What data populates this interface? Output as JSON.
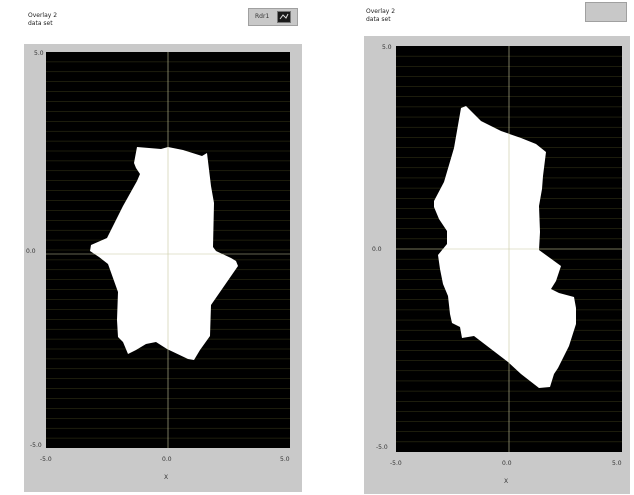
{
  "left_graph": {
    "title_line1": "Overlay 2",
    "title_line2": "data set",
    "button_label": "Rdr1",
    "y_tick_top": "5.0",
    "y_tick_mid": "0.0",
    "y_tick_bot": "-5.0",
    "x_tick_left": "-5.0",
    "x_tick_mid": "0.0",
    "x_tick_right": "5.0",
    "x_axis_label": "X"
  },
  "right_graph": {
    "title_line1": "Overlay 2",
    "title_line2": "data set",
    "y_tick_top": "5.0",
    "y_tick_mid": "0.0",
    "y_tick_bot": "-5.0",
    "x_tick_left": "-5.0",
    "x_tick_mid": "0.0",
    "x_tick_right": "5.0",
    "x_axis_label": "X"
  },
  "colors": {
    "plot_background": "#000000",
    "grid_lines": "#3a3a1a",
    "shape_fill": "#ffffff",
    "frame": "#c9c9c9"
  }
}
